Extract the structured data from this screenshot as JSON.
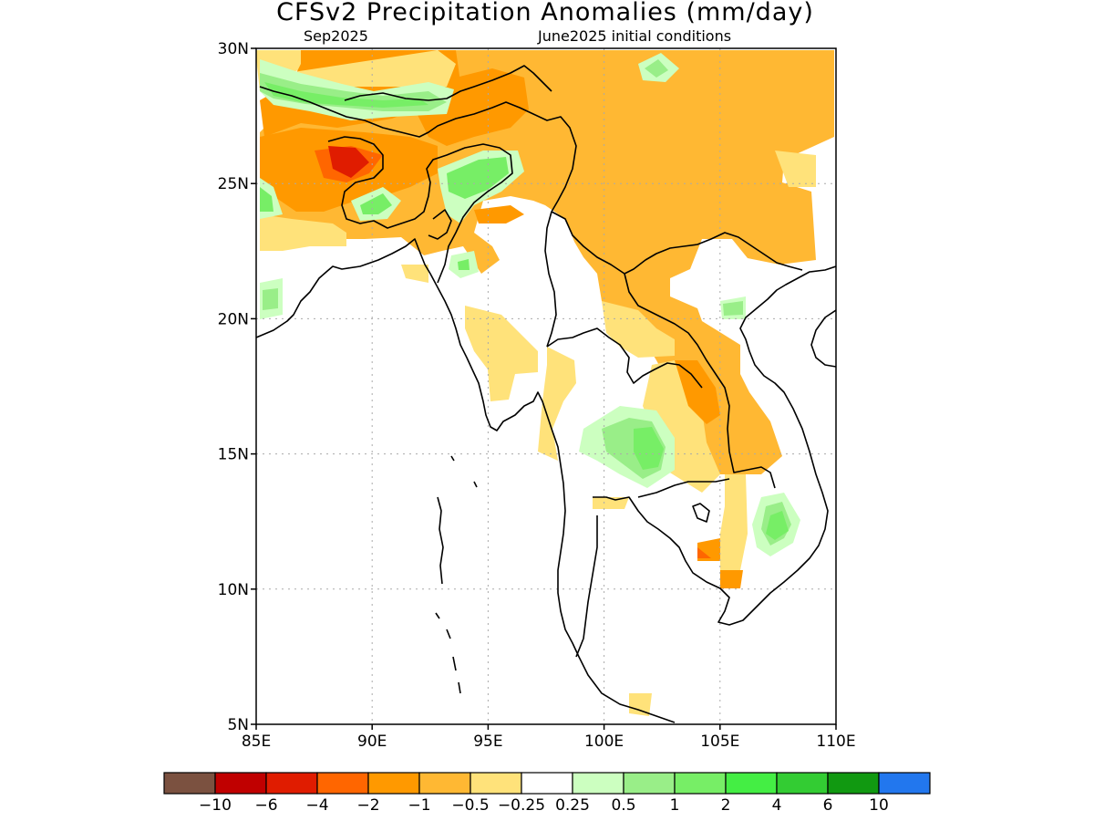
{
  "title": "CFSv2 Precipitation Anomalies (mm/day)",
  "subtitle_left": "Sep2025",
  "subtitle_right": "June2025 initial conditions",
  "map": {
    "lon_range": [
      85,
      110
    ],
    "lat_range": [
      5,
      30
    ],
    "x_ticks": [
      "85E",
      "90E",
      "95E",
      "100E",
      "105E",
      "110E"
    ],
    "y_ticks": [
      "5N",
      "10N",
      "15N",
      "20N",
      "25N",
      "30N"
    ],
    "gridlines": true
  },
  "colorbar": {
    "colors": [
      "#7b5140",
      "#c00000",
      "#e01c00",
      "#ff6600",
      "#ff9900",
      "#ffb833",
      "#ffe27a",
      "#ffffff",
      "#ccffc0",
      "#99ee88",
      "#77ee66",
      "#44ee44",
      "#33cc33",
      "#119911",
      "#2277ee"
    ],
    "labels": [
      "−10",
      "−6",
      "−4",
      "−2",
      "−1",
      "−0.5",
      "−0.25",
      "0.25",
      "0.5",
      "1",
      "2",
      "4",
      "6",
      "10"
    ]
  },
  "palette": {
    "orange": "#ffb833",
    "dark_orange": "#ff9900",
    "red_orange": "#ff6600",
    "red": "#e01c00",
    "yellow": "#ffe27a",
    "pale_green": "#ccffc0",
    "light_green": "#99ee88",
    "green": "#77ee66",
    "bright_green": "#44ee44"
  }
}
